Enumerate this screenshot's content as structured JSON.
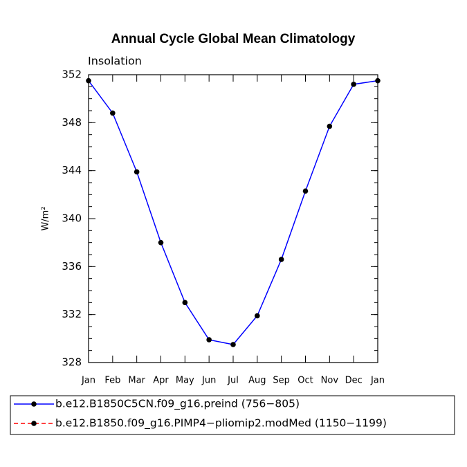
{
  "chart_data": {
    "type": "line",
    "title": "Annual Cycle Global Mean Climatology",
    "subtitle": "Insolation",
    "ylabel": "W/m²",
    "categories": [
      "Jan",
      "Feb",
      "Mar",
      "Apr",
      "May",
      "Jun",
      "Jul",
      "Aug",
      "Sep",
      "Oct",
      "Nov",
      "Dec",
      "Jan"
    ],
    "series": [
      {
        "name": "b.e12.B1850C5CN.f09_g16.preind (756−805)",
        "color": "#0000ff",
        "dash": false,
        "values": [
          351.5,
          348.8,
          343.9,
          338.0,
          333.0,
          329.9,
          329.5,
          331.9,
          336.6,
          342.3,
          347.7,
          351.2,
          351.5
        ]
      },
      {
        "name": "b.e12.B1850.f09_g16.PIMP4−pliomip2.modMed (1150−1199)",
        "color": "#ff0000",
        "dash": true,
        "values": [
          null,
          null,
          null,
          null,
          null,
          null,
          null,
          null,
          null,
          null,
          null,
          null,
          null
        ]
      }
    ],
    "ylim": [
      328,
      352
    ],
    "yticks": [
      328,
      332,
      336,
      340,
      344,
      348,
      352
    ]
  }
}
